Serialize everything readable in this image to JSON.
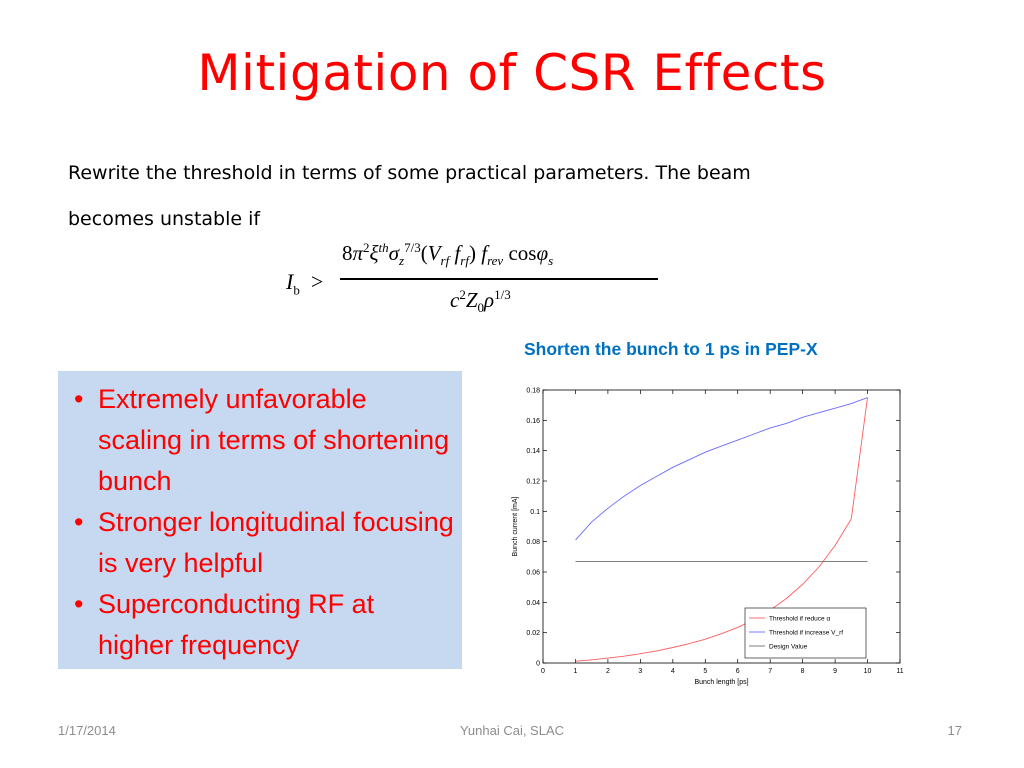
{
  "slide": {
    "title": "Mitigation of CSR Effects",
    "intro_line1": "Rewrite the threshold in terms of some practical parameters. The beam",
    "intro_line2": "becomes unstable if"
  },
  "formula": {
    "lhs_symbol": "I",
    "lhs_subscript": "b",
    "relation": ">",
    "numerator": "8π² ξ^th σ_z^{7/3} (V_rf f_rf) f_rev cos φ_s",
    "denominator": "c² Z₀ ρ^{1/3}"
  },
  "bullets": [
    "Extremely unfavorable scaling in terms of shortening bunch",
    "Stronger longitudinal focusing is very helpful",
    "Superconducting RF at higher frequency"
  ],
  "bullet_glyph": "•",
  "chart_caption": "Shorten the bunch to 1 ps  in PEP-X",
  "chart_data": {
    "type": "line",
    "xlabel": "Bunch length [ps]",
    "ylabel": "Bunch current [mA]",
    "xlim": [
      0,
      11
    ],
    "ylim": [
      0,
      0.18
    ],
    "xticks": [
      0,
      1,
      2,
      3,
      4,
      5,
      6,
      7,
      8,
      9,
      10,
      11
    ],
    "yticks": [
      0,
      0.02,
      0.04,
      0.06,
      0.08,
      0.1,
      0.12,
      0.14,
      0.16,
      0.18
    ],
    "ytick_labels": [
      "0",
      "0.02",
      "0.04",
      "0.06",
      "0.08",
      "0.1",
      "0.12",
      "0.14",
      "0.16",
      "0.18"
    ],
    "grid": false,
    "legend_position": "bottom-right",
    "series": [
      {
        "name": "Threshold if reduce α",
        "color": "#ff5c5c",
        "x": [
          1,
          1.5,
          2,
          2.5,
          3,
          3.5,
          4,
          4.5,
          5,
          5.5,
          6,
          6.5,
          7,
          7.5,
          8,
          8.5,
          9,
          9.5,
          10
        ],
        "y": [
          0.0012,
          0.0021,
          0.0032,
          0.0045,
          0.0061,
          0.008,
          0.0102,
          0.0127,
          0.0157,
          0.0193,
          0.0235,
          0.0286,
          0.0348,
          0.0425,
          0.0518,
          0.0633,
          0.0775,
          0.095,
          0.175
        ]
      },
      {
        "name": "Threshold if increase V_rf",
        "color": "#6a6aff",
        "x": [
          1,
          1.5,
          2,
          2.5,
          3,
          3.5,
          4,
          4.5,
          5,
          5.5,
          6,
          6.5,
          7,
          7.5,
          8,
          8.5,
          9,
          9.5,
          10
        ],
        "y": [
          0.081,
          0.093,
          0.102,
          0.11,
          0.117,
          0.123,
          0.129,
          0.134,
          0.139,
          0.143,
          0.147,
          0.151,
          0.155,
          0.158,
          0.162,
          0.165,
          0.168,
          0.171,
          0.175
        ]
      },
      {
        "name": "Design Value",
        "color": "#6e6e6e",
        "x": [
          1,
          10
        ],
        "y": [
          0.067,
          0.067
        ]
      }
    ]
  },
  "footer": {
    "date": "1/17/2014",
    "author": "Yunhai Cai, SLAC",
    "page": "17"
  }
}
